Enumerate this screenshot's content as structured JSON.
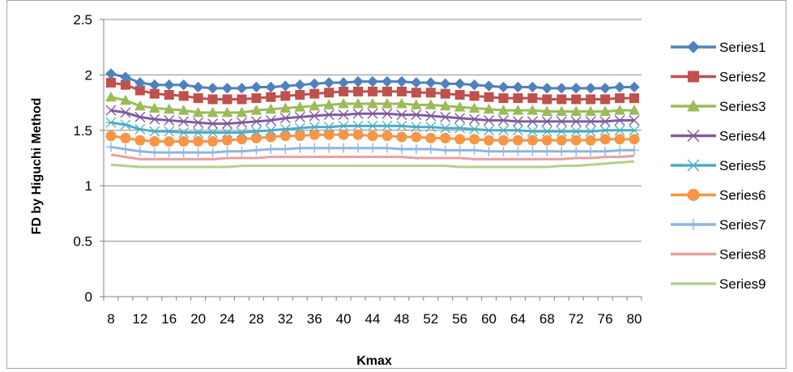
{
  "chart_data": {
    "type": "line",
    "title": "",
    "xlabel": "Kmax",
    "ylabel": "FD by Higuchi Method",
    "ylim": [
      0,
      2.5
    ],
    "y_ticks": [
      "0",
      "0.5",
      "1",
      "1.5",
      "2",
      "2.5"
    ],
    "x": [
      8,
      10,
      12,
      14,
      16,
      18,
      20,
      22,
      24,
      26,
      28,
      30,
      32,
      34,
      36,
      38,
      40,
      42,
      44,
      46,
      48,
      50,
      52,
      54,
      56,
      58,
      60,
      62,
      64,
      66,
      68,
      70,
      72,
      74,
      76,
      78,
      80
    ],
    "x_tick_labels": [
      "8",
      "12",
      "16",
      "20",
      "24",
      "28",
      "32",
      "36",
      "40",
      "44",
      "48",
      "52",
      "56",
      "60",
      "64",
      "68",
      "72",
      "76",
      "80"
    ],
    "grid": "horizontal",
    "legend_position": "right",
    "series": [
      {
        "name": "Series1",
        "color": "#4f81bd",
        "marker": "diamond",
        "values": [
          2.01,
          1.98,
          1.93,
          1.91,
          1.91,
          1.91,
          1.89,
          1.88,
          1.88,
          1.88,
          1.89,
          1.89,
          1.9,
          1.91,
          1.92,
          1.93,
          1.93,
          1.94,
          1.94,
          1.94,
          1.94,
          1.93,
          1.93,
          1.92,
          1.92,
          1.91,
          1.9,
          1.89,
          1.89,
          1.89,
          1.88,
          1.88,
          1.88,
          1.88,
          1.88,
          1.89,
          1.89
        ]
      },
      {
        "name": "Series2",
        "color": "#c0504d",
        "marker": "square",
        "values": [
          1.93,
          1.91,
          1.86,
          1.83,
          1.82,
          1.81,
          1.79,
          1.78,
          1.78,
          1.78,
          1.79,
          1.8,
          1.81,
          1.82,
          1.83,
          1.84,
          1.85,
          1.85,
          1.85,
          1.85,
          1.85,
          1.84,
          1.84,
          1.83,
          1.82,
          1.81,
          1.8,
          1.79,
          1.79,
          1.79,
          1.78,
          1.78,
          1.78,
          1.78,
          1.78,
          1.79,
          1.79
        ]
      },
      {
        "name": "Series3",
        "color": "#9bbb59",
        "marker": "triangle",
        "values": [
          1.8,
          1.77,
          1.72,
          1.7,
          1.69,
          1.68,
          1.66,
          1.66,
          1.66,
          1.66,
          1.68,
          1.69,
          1.7,
          1.71,
          1.72,
          1.73,
          1.74,
          1.74,
          1.74,
          1.74,
          1.74,
          1.73,
          1.73,
          1.72,
          1.71,
          1.7,
          1.69,
          1.68,
          1.68,
          1.68,
          1.67,
          1.67,
          1.67,
          1.67,
          1.67,
          1.68,
          1.68
        ]
      },
      {
        "name": "Series4",
        "color": "#7f5aa2",
        "marker": "x",
        "values": [
          1.68,
          1.66,
          1.62,
          1.6,
          1.59,
          1.58,
          1.57,
          1.56,
          1.56,
          1.57,
          1.58,
          1.59,
          1.61,
          1.62,
          1.63,
          1.64,
          1.64,
          1.65,
          1.65,
          1.65,
          1.64,
          1.64,
          1.63,
          1.62,
          1.61,
          1.6,
          1.59,
          1.59,
          1.58,
          1.58,
          1.58,
          1.58,
          1.58,
          1.58,
          1.58,
          1.59,
          1.59
        ]
      },
      {
        "name": "Series5",
        "color": "#4bacc6",
        "marker": "asterisk",
        "values": [
          1.57,
          1.55,
          1.51,
          1.49,
          1.49,
          1.48,
          1.48,
          1.48,
          1.48,
          1.48,
          1.49,
          1.5,
          1.51,
          1.52,
          1.53,
          1.53,
          1.54,
          1.54,
          1.54,
          1.54,
          1.54,
          1.53,
          1.53,
          1.52,
          1.52,
          1.51,
          1.5,
          1.5,
          1.5,
          1.49,
          1.49,
          1.49,
          1.49,
          1.49,
          1.5,
          1.5,
          1.5
        ]
      },
      {
        "name": "Series6",
        "color": "#f79646",
        "marker": "circle",
        "values": [
          1.45,
          1.43,
          1.41,
          1.4,
          1.4,
          1.4,
          1.4,
          1.4,
          1.41,
          1.42,
          1.43,
          1.44,
          1.45,
          1.45,
          1.46,
          1.46,
          1.46,
          1.46,
          1.45,
          1.45,
          1.44,
          1.44,
          1.43,
          1.43,
          1.42,
          1.42,
          1.41,
          1.41,
          1.41,
          1.41,
          1.41,
          1.41,
          1.41,
          1.41,
          1.42,
          1.42,
          1.42
        ]
      },
      {
        "name": "Series7",
        "color": "#8eb4e3",
        "marker": "plus",
        "values": [
          1.35,
          1.33,
          1.31,
          1.3,
          1.3,
          1.3,
          1.3,
          1.3,
          1.31,
          1.31,
          1.32,
          1.33,
          1.33,
          1.34,
          1.34,
          1.34,
          1.34,
          1.34,
          1.34,
          1.34,
          1.33,
          1.33,
          1.33,
          1.32,
          1.32,
          1.32,
          1.31,
          1.31,
          1.31,
          1.31,
          1.31,
          1.31,
          1.31,
          1.31,
          1.31,
          1.32,
          1.32
        ]
      },
      {
        "name": "Series8",
        "color": "#e6a0a0",
        "marker": "none",
        "values": [
          1.28,
          1.26,
          1.24,
          1.24,
          1.24,
          1.24,
          1.24,
          1.24,
          1.25,
          1.25,
          1.25,
          1.26,
          1.26,
          1.26,
          1.26,
          1.26,
          1.26,
          1.26,
          1.26,
          1.26,
          1.26,
          1.25,
          1.25,
          1.25,
          1.25,
          1.24,
          1.24,
          1.24,
          1.24,
          1.24,
          1.24,
          1.24,
          1.25,
          1.25,
          1.26,
          1.26,
          1.27
        ]
      },
      {
        "name": "Series9",
        "color": "#b3d18a",
        "marker": "none",
        "values": [
          1.19,
          1.18,
          1.17,
          1.17,
          1.17,
          1.17,
          1.17,
          1.17,
          1.17,
          1.18,
          1.18,
          1.18,
          1.18,
          1.18,
          1.18,
          1.18,
          1.18,
          1.18,
          1.18,
          1.18,
          1.18,
          1.18,
          1.18,
          1.18,
          1.17,
          1.17,
          1.17,
          1.17,
          1.17,
          1.17,
          1.17,
          1.18,
          1.18,
          1.19,
          1.2,
          1.21,
          1.22
        ]
      }
    ]
  }
}
